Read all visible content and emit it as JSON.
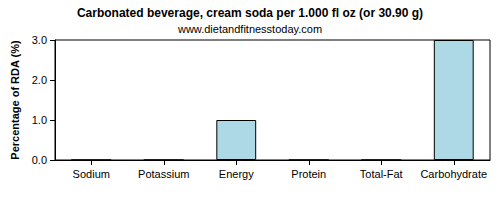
{
  "chart_data": {
    "type": "bar",
    "title": "Carbonated beverage, cream soda per 1.000 fl oz (or 30.90 g)",
    "subtitle": "www.dietandfitnesstoday.com",
    "ylabel": "Percentage of RDA (%)",
    "categories": [
      "Sodium",
      "Potassium",
      "Energy",
      "Protein",
      "Total-Fat",
      "Carbohydrate"
    ],
    "values": [
      0,
      0,
      1,
      0,
      0,
      3
    ],
    "color": "#add8e6",
    "ylim": [
      0,
      3
    ],
    "yticks": [
      {
        "value": 0,
        "label": "0.0"
      },
      {
        "value": 1,
        "label": "1.0"
      },
      {
        "value": 2,
        "label": "2.0"
      },
      {
        "value": 3,
        "label": "3.0"
      }
    ],
    "grid": false
  }
}
